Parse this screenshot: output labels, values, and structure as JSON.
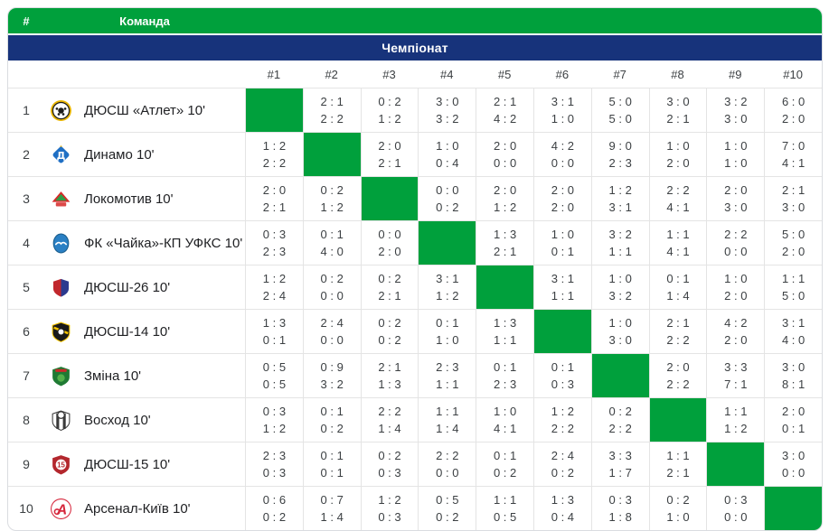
{
  "colors": {
    "header_green": "#00a03c",
    "banner_navy": "#17337b",
    "diagonal_green": "#00a03c",
    "grid_line": "#e4e4e4",
    "outer_border": "#dadce0",
    "score_text": "#3c4043",
    "team_text": "#202124",
    "header_text": "#ffffff"
  },
  "table_header": {
    "rank": "#",
    "team": "Команда"
  },
  "banner": {
    "title": "Чемпіонат"
  },
  "columns": [
    "#1",
    "#2",
    "#3",
    "#4",
    "#5",
    "#6",
    "#7",
    "#8",
    "#9",
    "#10"
  ],
  "teams": [
    {
      "rank": "1",
      "name": "ДЮСШ «Атлет» 10'",
      "logo": {
        "icon": "atlet-ball-logo",
        "c": [
          "#e8b400",
          "#1d1d1b",
          "#ffffff"
        ]
      },
      "results": [
        null,
        [
          "2:1",
          "2:2"
        ],
        [
          "0:2",
          "1:2"
        ],
        [
          "3:0",
          "3:2"
        ],
        [
          "2:1",
          "4:2"
        ],
        [
          "3:1",
          "1:0"
        ],
        [
          "5:0",
          "5:0"
        ],
        [
          "3:0",
          "2:1"
        ],
        [
          "3:2",
          "3:0"
        ],
        [
          "6:0",
          "2:0"
        ]
      ]
    },
    {
      "rank": "2",
      "name": "Динамо 10'",
      "logo": {
        "icon": "dynamo-logo",
        "c": [
          "#1f6fc4",
          "#ffffff",
          "#f0b400"
        ]
      },
      "results": [
        [
          "1:2",
          "2:2"
        ],
        null,
        [
          "2:0",
          "2:1"
        ],
        [
          "1:0",
          "0:4"
        ],
        [
          "2:0",
          "0:0"
        ],
        [
          "4:2",
          "0:0"
        ],
        [
          "9:0",
          "2:3"
        ],
        [
          "1:0",
          "2:0"
        ],
        [
          "1:0",
          "1:0"
        ],
        [
          "7:0",
          "4:1"
        ]
      ]
    },
    {
      "rank": "3",
      "name": "Локомотив 10'",
      "logo": {
        "icon": "lokomotyv-logo",
        "c": [
          "#d62828",
          "#2e9e46",
          "#ffffff"
        ]
      },
      "results": [
        [
          "2:0",
          "2:1"
        ],
        [
          "0:2",
          "1:2"
        ],
        null,
        [
          "0:0",
          "0:2"
        ],
        [
          "2:0",
          "1:2"
        ],
        [
          "2:0",
          "2:0"
        ],
        [
          "1:2",
          "3:1"
        ],
        [
          "2:2",
          "4:1"
        ],
        [
          "2:0",
          "3:0"
        ],
        [
          "2:1",
          "3:0"
        ]
      ]
    },
    {
      "rank": "4",
      "name": "ФК «Чайка»-КП УФКС 10'",
      "logo": {
        "icon": "chaika-logo",
        "c": [
          "#2a80c4",
          "#ffffff"
        ]
      },
      "results": [
        [
          "0:3",
          "2:3"
        ],
        [
          "0:1",
          "4:0"
        ],
        [
          "0:0",
          "2:0"
        ],
        null,
        [
          "1:3",
          "2:1"
        ],
        [
          "1:0",
          "0:1"
        ],
        [
          "3:2",
          "1:1"
        ],
        [
          "1:1",
          "4:1"
        ],
        [
          "2:2",
          "0:0"
        ],
        [
          "5:0",
          "2:0"
        ]
      ]
    },
    {
      "rank": "5",
      "name": "ДЮСШ-26 10'",
      "logo": {
        "icon": "dyussh26-logo",
        "c": [
          "#c1272d",
          "#2b3a8f",
          "#ffffff"
        ]
      },
      "results": [
        [
          "1:2",
          "2:4"
        ],
        [
          "0:2",
          "0:0"
        ],
        [
          "0:2",
          "2:1"
        ],
        [
          "3:1",
          "1:2"
        ],
        null,
        [
          "3:1",
          "1:1"
        ],
        [
          "1:0",
          "3:2"
        ],
        [
          "0:1",
          "1:4"
        ],
        [
          "1:0",
          "2:0"
        ],
        [
          "1:1",
          "5:0"
        ]
      ]
    },
    {
      "rank": "6",
      "name": "ДЮСШ-14 10'",
      "logo": {
        "icon": "dyussh14-logo",
        "c": [
          "#1a1a1a",
          "#f5c400",
          "#ffffff"
        ]
      },
      "results": [
        [
          "1:3",
          "0:1"
        ],
        [
          "2:4",
          "0:0"
        ],
        [
          "0:2",
          "0:2"
        ],
        [
          "0:1",
          "1:0"
        ],
        [
          "1:3",
          "1:1"
        ],
        null,
        [
          "1:0",
          "3:0"
        ],
        [
          "2:1",
          "2:2"
        ],
        [
          "4:2",
          "2:0"
        ],
        [
          "3:1",
          "4:0"
        ]
      ]
    },
    {
      "rank": "7",
      "name": "Зміна 10'",
      "logo": {
        "icon": "zmina-logo",
        "c": [
          "#1f7a33",
          "#53b04a",
          "#c92a2a"
        ]
      },
      "results": [
        [
          "0:5",
          "0:5"
        ],
        [
          "0:9",
          "3:2"
        ],
        [
          "2:1",
          "1:3"
        ],
        [
          "2:3",
          "1:1"
        ],
        [
          "0:1",
          "2:3"
        ],
        [
          "0:1",
          "0:3"
        ],
        null,
        [
          "2:0",
          "2:2"
        ],
        [
          "3:3",
          "7:1"
        ],
        [
          "3:0",
          "8:1"
        ]
      ]
    },
    {
      "rank": "8",
      "name": "Восход 10'",
      "logo": {
        "icon": "voskhod-logo",
        "c": [
          "#3a3a3a",
          "#ffffff",
          "#8a8a8a"
        ]
      },
      "results": [
        [
          "0:3",
          "1:2"
        ],
        [
          "0:1",
          "0:2"
        ],
        [
          "2:2",
          "1:4"
        ],
        [
          "1:1",
          "1:4"
        ],
        [
          "1:0",
          "4:1"
        ],
        [
          "1:2",
          "2:2"
        ],
        [
          "0:2",
          "2:2"
        ],
        null,
        [
          "1:1",
          "1:2"
        ],
        [
          "2:0",
          "0:1"
        ]
      ]
    },
    {
      "rank": "9",
      "name": "ДЮСШ-15 10'",
      "logo": {
        "icon": "dyussh15-logo",
        "c": [
          "#b3272d",
          "#ffffff"
        ]
      },
      "results": [
        [
          "2:3",
          "0:3"
        ],
        [
          "0:1",
          "0:1"
        ],
        [
          "0:2",
          "0:3"
        ],
        [
          "2:2",
          "0:0"
        ],
        [
          "0:1",
          "0:2"
        ],
        [
          "2:4",
          "0:2"
        ],
        [
          "3:3",
          "1:7"
        ],
        [
          "1:1",
          "2:1"
        ],
        null,
        [
          "3:0",
          "0:0"
        ]
      ]
    },
    {
      "rank": "10",
      "name": "Арсенал-Київ 10'",
      "logo": {
        "icon": "arsenal-logo",
        "c": [
          "#d6273c",
          "#ffffff"
        ]
      },
      "results": [
        [
          "0:6",
          "0:2"
        ],
        [
          "0:7",
          "1:4"
        ],
        [
          "1:2",
          "0:3"
        ],
        [
          "0:5",
          "0:2"
        ],
        [
          "1:1",
          "0:5"
        ],
        [
          "1:3",
          "0:4"
        ],
        [
          "0:3",
          "1:8"
        ],
        [
          "0:2",
          "1:0"
        ],
        [
          "0:3",
          "0:0"
        ],
        null
      ]
    }
  ]
}
